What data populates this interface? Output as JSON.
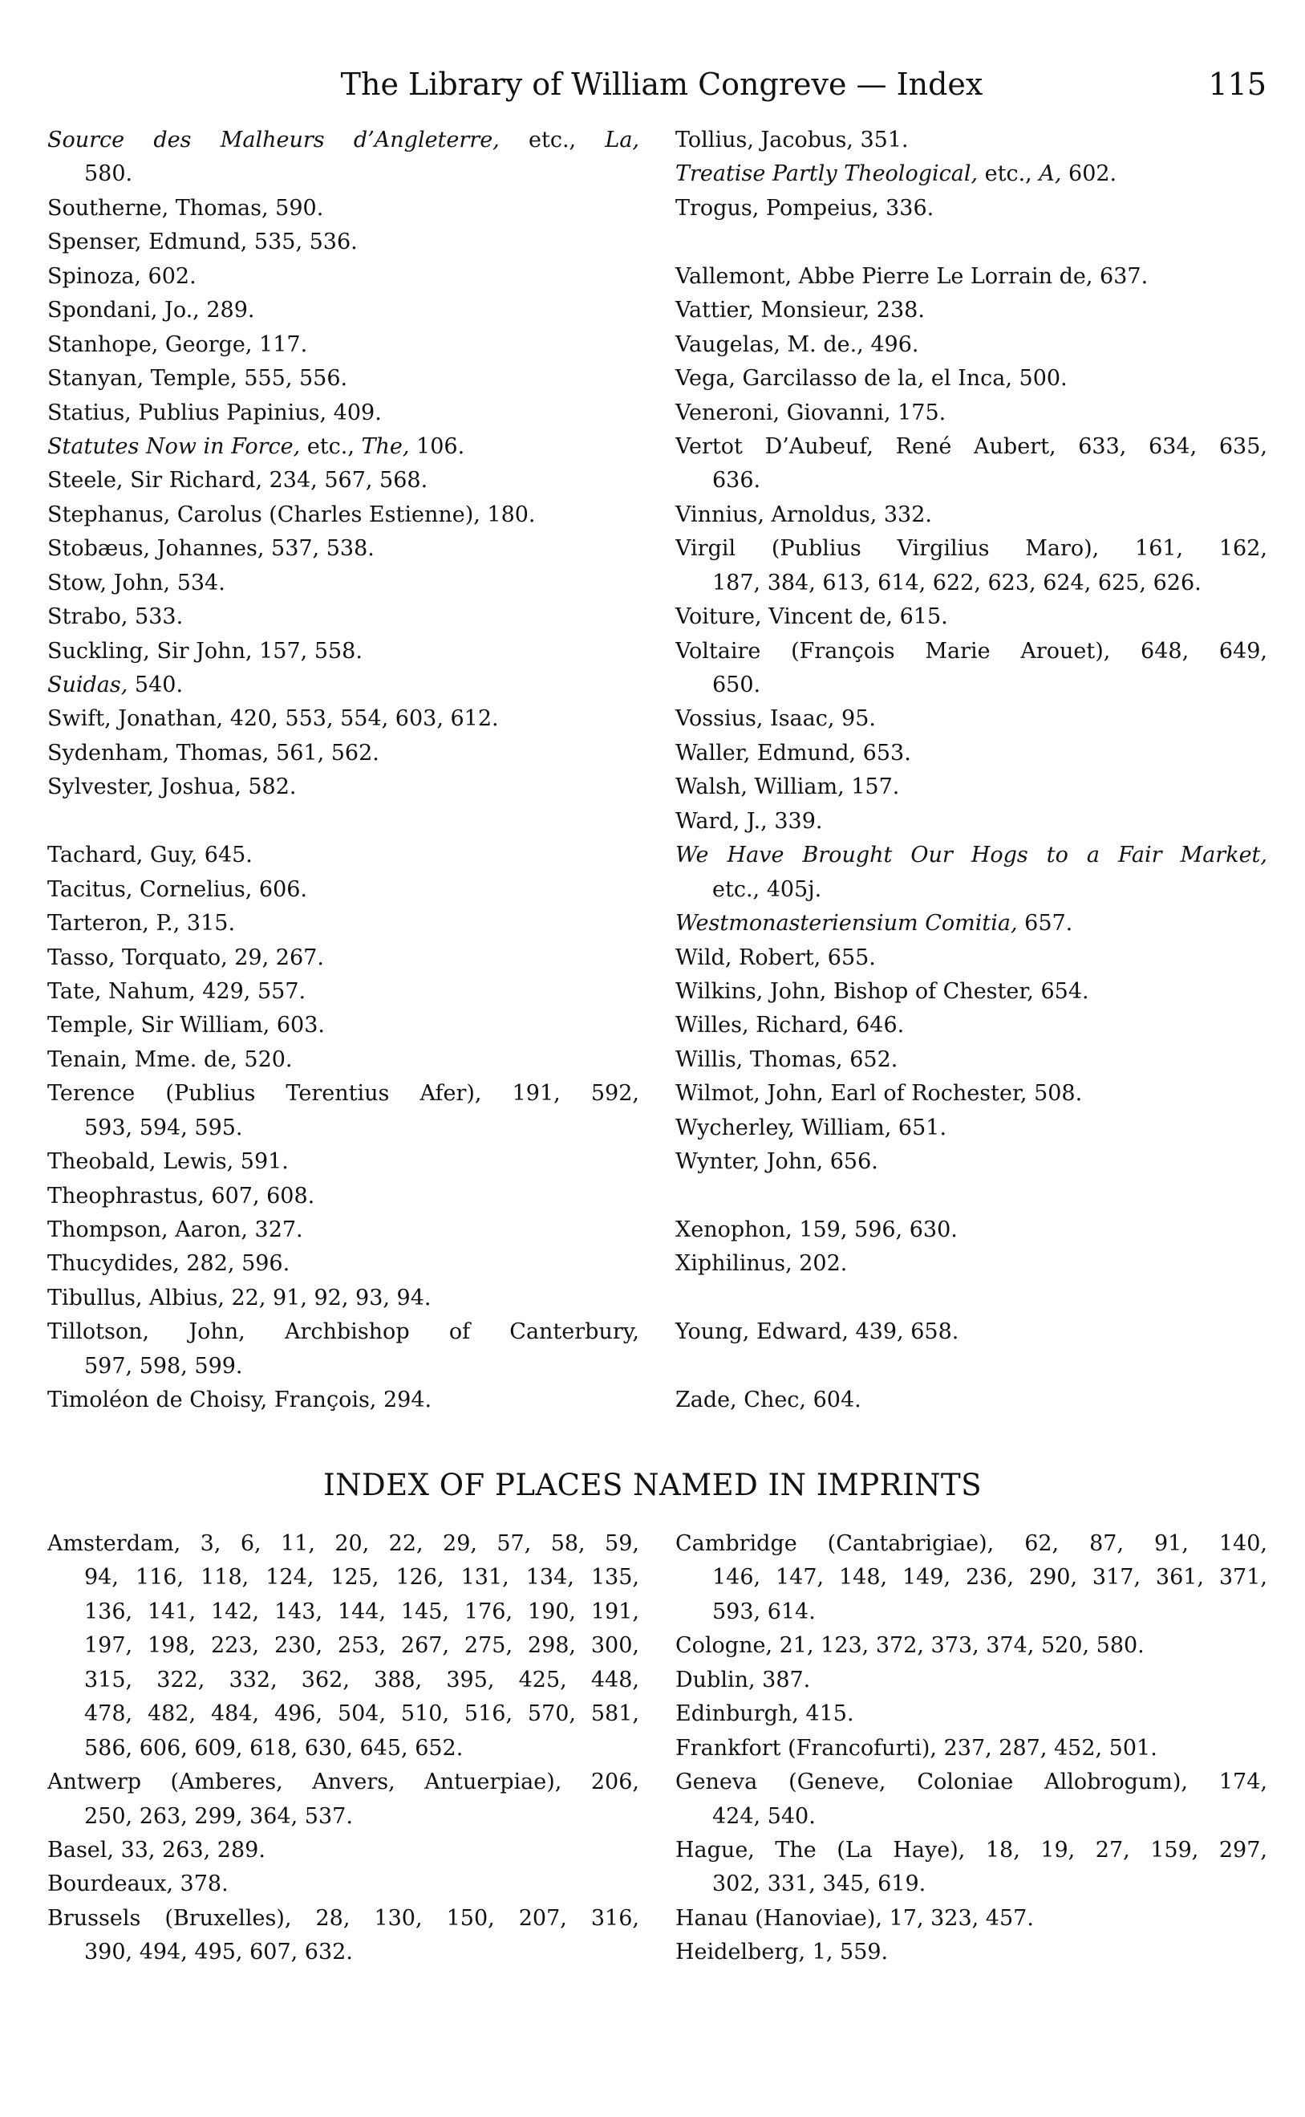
{
  "header": {
    "title": "The Library of William Congreve — Index",
    "page": "115"
  },
  "names": {
    "left": [
      [
        {
          "lines": [
            [
              {
                "i": "Source des Malheurs d’Angleterre,"
              },
              " etc., ",
              {
                "i": "La,"
              }
            ],
            "580."
          ]
        },
        {
          "lines": [
            "Southerne, Thomas, 590."
          ]
        },
        {
          "lines": [
            "Spenser, Edmund, 535, 536."
          ]
        },
        {
          "lines": [
            "Spinoza, 602."
          ]
        },
        {
          "lines": [
            "Spondani, Jo., 289."
          ]
        },
        {
          "lines": [
            "Stanhope, George, 117."
          ]
        },
        {
          "lines": [
            "Stanyan, Temple, 555, 556."
          ]
        },
        {
          "lines": [
            "Statius, Publius Papinius, 409."
          ]
        },
        {
          "lines": [
            [
              {
                "i": "Statutes Now in Force,"
              },
              " etc., ",
              {
                "i": "The,"
              },
              " 106."
            ]
          ]
        },
        {
          "lines": [
            "Steele, Sir Richard, 234, 567, 568."
          ]
        },
        {
          "lines": [
            "Stephanus, Carolus (Charles Estienne), 180."
          ]
        },
        {
          "lines": [
            "Stobæus, Johannes, 537, 538."
          ]
        },
        {
          "lines": [
            "Stow, John, 534."
          ]
        },
        {
          "lines": [
            "Strabo, 533."
          ]
        },
        {
          "lines": [
            "Suckling, Sir John, 157, 558."
          ]
        },
        {
          "lines": [
            [
              {
                "i": "Suidas,"
              },
              " 540."
            ]
          ]
        },
        {
          "lines": [
            "Swift, Jonathan, 420, 553, 554, 603, 612."
          ]
        },
        {
          "lines": [
            "Sydenham, Thomas, 561, 562."
          ]
        },
        {
          "lines": [
            "Sylvester, Joshua, 582."
          ]
        }
      ],
      [
        {
          "lines": [
            "Tachard, Guy, 645."
          ]
        },
        {
          "lines": [
            "Tacitus, Cornelius, 606."
          ]
        },
        {
          "lines": [
            "Tarteron, P., 315."
          ]
        },
        {
          "lines": [
            "Tasso, Torquato, 29, 267."
          ]
        },
        {
          "lines": [
            "Tate, Nahum, 429, 557."
          ]
        },
        {
          "lines": [
            "Temple, Sir William, 603."
          ]
        },
        {
          "lines": [
            "Tenain, Mme. de, 520."
          ]
        },
        {
          "lines": [
            "Terence (Publius Terentius Afer), 191, 592,",
            "593, 594, 595."
          ]
        },
        {
          "lines": [
            "Theobald, Lewis, 591."
          ]
        },
        {
          "lines": [
            "Theophrastus, 607, 608."
          ]
        },
        {
          "lines": [
            "Thompson, Aaron, 327."
          ]
        },
        {
          "lines": [
            "Thucydides, 282, 596."
          ]
        },
        {
          "lines": [
            "Tibullus, Albius, 22, 91, 92, 93, 94."
          ]
        },
        {
          "lines": [
            "Tillotson, John, Archbishop of Canterbury,",
            "597, 598, 599."
          ]
        },
        {
          "lines": [
            "Timoléon de Choisy, François, 294."
          ]
        }
      ]
    ],
    "right": [
      [
        {
          "lines": [
            "Tollius, Jacobus, 351."
          ]
        },
        {
          "lines": [
            [
              {
                "i": "Treatise Partly Theological,"
              },
              " etc., ",
              {
                "i": "A,"
              },
              " 602."
            ]
          ]
        },
        {
          "lines": [
            "Trogus, Pompeius, 336."
          ]
        }
      ],
      [
        {
          "lines": [
            "Vallemont, Abbe Pierre Le Lorrain de, 637."
          ]
        },
        {
          "lines": [
            "Vattier, Monsieur, 238."
          ]
        },
        {
          "lines": [
            "Vaugelas, M. de., 496."
          ]
        },
        {
          "lines": [
            "Vega, Garcilasso de la, el Inca, 500."
          ]
        },
        {
          "lines": [
            "Veneroni, Giovanni, 175."
          ]
        },
        {
          "lines": [
            "Vertot D’Aubeuf, René Aubert, 633, 634, 635,",
            "636."
          ]
        },
        {
          "lines": [
            "Vinnius, Arnoldus, 332."
          ]
        },
        {
          "lines": [
            "Virgil (Publius Virgilius Maro), 161, 162,",
            "187, 384, 613, 614, 622, 623, 624, 625, 626."
          ]
        },
        {
          "lines": [
            "Voiture, Vincent de, 615."
          ]
        },
        {
          "lines": [
            "Voltaire (François Marie Arouet), 648, 649,",
            "650."
          ]
        },
        {
          "lines": [
            "Vossius, Isaac, 95."
          ]
        },
        {
          "lines": [
            "Waller, Edmund, 653."
          ]
        },
        {
          "lines": [
            "Walsh, William, 157."
          ]
        },
        {
          "lines": [
            "Ward, J., 339."
          ]
        },
        {
          "lines": [
            [
              {
                "i": "We Have Brought Our Hogs to a Fair Market,"
              }
            ],
            "etc., 405j."
          ]
        },
        {
          "lines": [
            [
              {
                "i": "Westmonasteriensium Comitia,"
              },
              " 657."
            ]
          ]
        },
        {
          "lines": [
            "Wild, Robert, 655."
          ]
        },
        {
          "lines": [
            "Wilkins, John, Bishop of Chester, 654."
          ]
        },
        {
          "lines": [
            "Willes, Richard, 646."
          ]
        },
        {
          "lines": [
            "Willis, Thomas, 652."
          ]
        },
        {
          "lines": [
            "Wilmot, John, Earl of Rochester, 508."
          ]
        },
        {
          "lines": [
            "Wycherley, William, 651."
          ]
        },
        {
          "lines": [
            "Wynter, John, 656."
          ]
        }
      ],
      [
        {
          "lines": [
            "Xenophon, 159, 596, 630."
          ]
        },
        {
          "lines": [
            "Xiphilinus, 202."
          ]
        }
      ],
      [
        {
          "lines": [
            "Young, Edward, 439, 658."
          ]
        }
      ],
      [
        {
          "lines": [
            "Zade, Chec, 604."
          ]
        }
      ]
    ]
  },
  "places": {
    "heading": "INDEX OF PLACES NAMED IN IMPRINTS",
    "left": [
      [
        {
          "lines": [
            "Amsterdam, 3, 6, 11, 20, 22, 29, 57, 58, 59,",
            "94, 116, 118, 124, 125, 126, 131, 134, 135,",
            "136, 141, 142, 143, 144, 145, 176, 190, 191,",
            "197, 198, 223, 230, 253, 267, 275, 298, 300,",
            "315, 322, 332, 362, 388, 395, 425, 448,",
            "478, 482, 484, 496, 504, 510, 516, 570, 581,",
            "586, 606, 609, 618, 630, 645, 652."
          ]
        },
        {
          "lines": [
            "Antwerp (Amberes, Anvers, Antuerpiae), 206,",
            "250, 263, 299, 364, 537."
          ]
        },
        {
          "lines": [
            "Basel, 33, 263, 289."
          ]
        },
        {
          "lines": [
            "Bourdeaux, 378."
          ]
        },
        {
          "lines": [
            "Brussels (Bruxelles), 28, 130, 150, 207, 316,",
            "390, 494, 495, 607, 632."
          ]
        }
      ]
    ],
    "right": [
      [
        {
          "lines": [
            "Cambridge (Cantabrigiae), 62, 87, 91, 140,",
            "146, 147, 148, 149, 236, 290, 317, 361, 371,",
            "593, 614."
          ]
        },
        {
          "lines": [
            "Cologne, 21, 123, 372, 373, 374, 520, 580."
          ]
        },
        {
          "lines": [
            "Dublin, 387."
          ]
        },
        {
          "lines": [
            "Edinburgh, 415."
          ]
        },
        {
          "lines": [
            "Frankfort (Francofurti), 237, 287, 452, 501."
          ]
        },
        {
          "lines": [
            "Geneva (Geneve, Coloniae Allobrogum), 174,",
            "424, 540."
          ]
        },
        {
          "lines": [
            "Hague, The (La Haye), 18, 19, 27, 159, 297,",
            "302, 331, 345, 619."
          ]
        },
        {
          "lines": [
            "Hanau (Hanoviae), 17, 323, 457."
          ]
        },
        {
          "lines": [
            "Heidelberg, 1, 559."
          ]
        }
      ]
    ]
  }
}
